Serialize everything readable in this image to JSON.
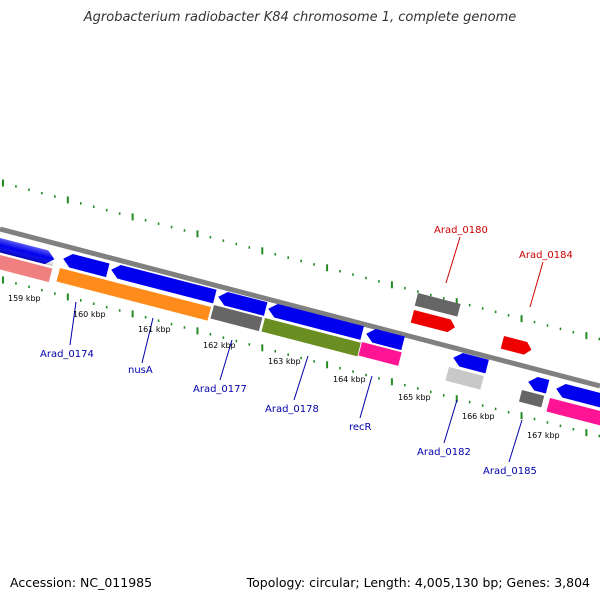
{
  "title": "Agrobacterium radiobacter K84 chromosome 1, complete genome",
  "footer": {
    "accession": "Accession: NC_011985",
    "topology": "Topology: circular; Length: 4,005,130 bp; Genes: 3,804"
  },
  "colors": {
    "backbone": "#808080",
    "tick": "#228b22",
    "blue_gene": "#0000ee",
    "red_gene": "#ee0000",
    "gray_gene": "#666666",
    "light_gray_gene": "#c8c8c8",
    "orange_gene": "#ff8c1a",
    "olive_gene": "#6b8e23",
    "pink_gene": "#ff1493",
    "salmon_gene": "#f08080",
    "label_blue": "#0000aa",
    "label_red": "#cc0000"
  },
  "scale_labels": [
    "159 kbp",
    "160 kbp",
    "161 kbp",
    "162 kbp",
    "163 kbp",
    "164 kbp",
    "165 kbp",
    "166 kbp",
    "167 kbp"
  ],
  "gene_labels": [
    {
      "text": "Arad_0174",
      "color": "blue"
    },
    {
      "text": "nusA",
      "color": "blue"
    },
    {
      "text": "Arad_0177",
      "color": "blue"
    },
    {
      "text": "Arad_0178",
      "color": "blue"
    },
    {
      "text": "recR",
      "color": "blue"
    },
    {
      "text": "Arad_0182",
      "color": "blue"
    },
    {
      "text": "Arad_0185",
      "color": "blue"
    },
    {
      "text": "Arad_0180",
      "color": "red"
    },
    {
      "text": "Arad_0184",
      "color": "red"
    }
  ]
}
